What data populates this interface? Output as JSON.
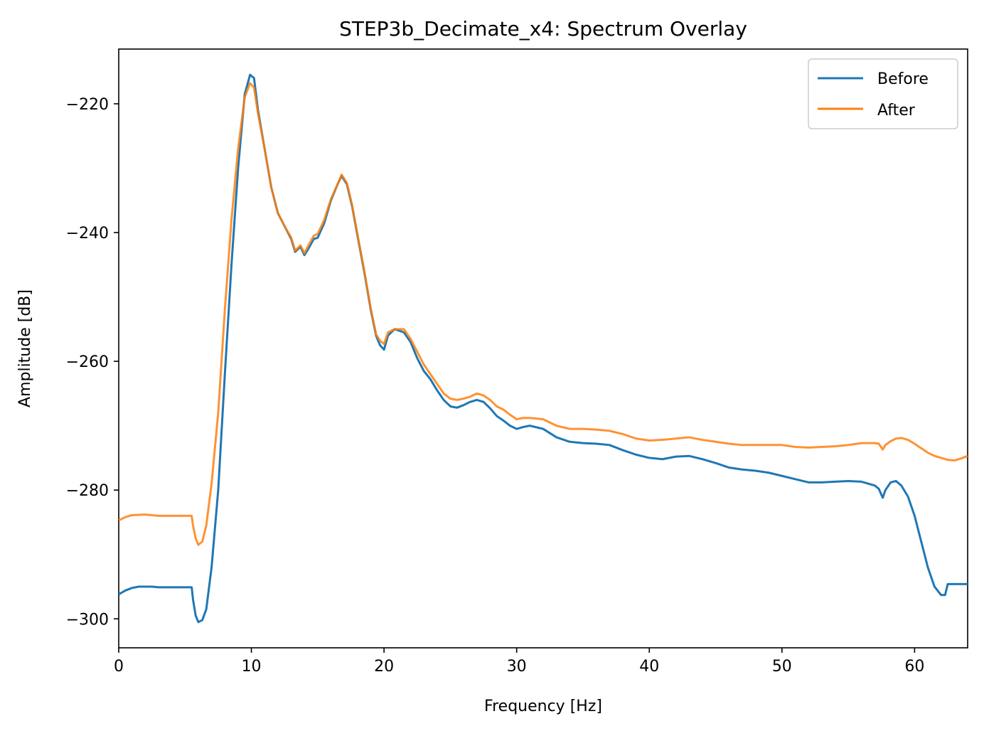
{
  "chart_data": {
    "type": "line",
    "title": "STEP3b_Decimate_x4: Spectrum Overlay",
    "xlabel": "Frequency [Hz]",
    "ylabel": "Amplitude [dB]",
    "xlim": [
      0,
      64
    ],
    "ylim": [
      -304.5,
      -211.5
    ],
    "xticks": [
      0,
      10,
      20,
      30,
      40,
      50,
      60
    ],
    "yticks": [
      -300,
      -280,
      -260,
      -240,
      -220
    ],
    "xtick_labels": [
      "0",
      "10",
      "20",
      "30",
      "40",
      "50",
      "60"
    ],
    "ytick_labels": [
      "−300",
      "−280",
      "−260",
      "−240",
      "−220"
    ],
    "grid": false,
    "legend_position": "top-right",
    "series": [
      {
        "name": "Before",
        "color": "#1f77b4",
        "points": [
          [
            0,
            -296.2
          ],
          [
            0.5,
            -295.6
          ],
          [
            1,
            -295.2
          ],
          [
            1.5,
            -295.0
          ],
          [
            2.5,
            -295.0
          ],
          [
            3,
            -295.1
          ],
          [
            4,
            -295.1
          ],
          [
            5,
            -295.1
          ],
          [
            5.5,
            -295.1
          ],
          [
            5.6,
            -297.0
          ],
          [
            5.8,
            -299.5
          ],
          [
            6.0,
            -300.5
          ],
          [
            6.3,
            -300.2
          ],
          [
            6.6,
            -298.5
          ],
          [
            7.0,
            -292.0
          ],
          [
            7.5,
            -280.0
          ],
          [
            8.0,
            -262.0
          ],
          [
            8.5,
            -245.0
          ],
          [
            9.0,
            -230.0
          ],
          [
            9.5,
            -218.5
          ],
          [
            9.9,
            -215.5
          ],
          [
            10.2,
            -216.0
          ],
          [
            10.5,
            -221.0
          ],
          [
            11.0,
            -227.0
          ],
          [
            11.5,
            -233.0
          ],
          [
            12.0,
            -237.0
          ],
          [
            12.5,
            -239.0
          ],
          [
            13.0,
            -241.0
          ],
          [
            13.3,
            -243.0
          ],
          [
            13.7,
            -242.2
          ],
          [
            14.0,
            -243.5
          ],
          [
            14.3,
            -242.5
          ],
          [
            14.7,
            -241.0
          ],
          [
            15.0,
            -240.8
          ],
          [
            15.5,
            -238.5
          ],
          [
            16.0,
            -235.0
          ],
          [
            16.5,
            -232.5
          ],
          [
            16.8,
            -231.2
          ],
          [
            17.2,
            -232.5
          ],
          [
            17.6,
            -236.0
          ],
          [
            18.0,
            -240.5
          ],
          [
            18.5,
            -246.0
          ],
          [
            19.0,
            -252.0
          ],
          [
            19.4,
            -256.0
          ],
          [
            19.7,
            -257.5
          ],
          [
            20.0,
            -258.2
          ],
          [
            20.3,
            -256.0
          ],
          [
            20.8,
            -255.0
          ],
          [
            21.5,
            -255.5
          ],
          [
            22.0,
            -257.0
          ],
          [
            22.5,
            -259.5
          ],
          [
            23.0,
            -261.5
          ],
          [
            23.5,
            -262.8
          ],
          [
            24.0,
            -264.5
          ],
          [
            24.5,
            -266.0
          ],
          [
            25.0,
            -267.0
          ],
          [
            25.5,
            -267.2
          ],
          [
            26.0,
            -266.8
          ],
          [
            26.5,
            -266.3
          ],
          [
            27.0,
            -266.0
          ],
          [
            27.5,
            -266.3
          ],
          [
            28.0,
            -267.3
          ],
          [
            28.5,
            -268.5
          ],
          [
            29.0,
            -269.2
          ],
          [
            29.5,
            -270.0
          ],
          [
            30.0,
            -270.5
          ],
          [
            30.5,
            -270.2
          ],
          [
            31.0,
            -270.0
          ],
          [
            32.0,
            -270.5
          ],
          [
            33.0,
            -271.8
          ],
          [
            34.0,
            -272.5
          ],
          [
            35.0,
            -272.7
          ],
          [
            36.0,
            -272.8
          ],
          [
            37.0,
            -273.0
          ],
          [
            38.0,
            -273.8
          ],
          [
            39.0,
            -274.5
          ],
          [
            40.0,
            -275.0
          ],
          [
            41.0,
            -275.2
          ],
          [
            42.0,
            -274.8
          ],
          [
            43.0,
            -274.7
          ],
          [
            44.0,
            -275.2
          ],
          [
            45.0,
            -275.8
          ],
          [
            46.0,
            -276.5
          ],
          [
            47.0,
            -276.8
          ],
          [
            48.0,
            -277.0
          ],
          [
            49.0,
            -277.3
          ],
          [
            50.0,
            -277.8
          ],
          [
            51.0,
            -278.3
          ],
          [
            52.0,
            -278.8
          ],
          [
            53.0,
            -278.8
          ],
          [
            54.0,
            -278.7
          ],
          [
            55.0,
            -278.6
          ],
          [
            56.0,
            -278.7
          ],
          [
            57.0,
            -279.3
          ],
          [
            57.3,
            -279.8
          ],
          [
            57.6,
            -281.2
          ],
          [
            57.8,
            -280.0
          ],
          [
            58.2,
            -278.8
          ],
          [
            58.6,
            -278.6
          ],
          [
            59.0,
            -279.3
          ],
          [
            59.5,
            -281.0
          ],
          [
            60.0,
            -284.0
          ],
          [
            60.5,
            -288.0
          ],
          [
            61.0,
            -292.0
          ],
          [
            61.5,
            -295.0
          ],
          [
            62.0,
            -296.3
          ],
          [
            62.3,
            -296.3
          ],
          [
            62.5,
            -294.6
          ],
          [
            63.0,
            -294.6
          ],
          [
            64.0,
            -294.6
          ]
        ]
      },
      {
        "name": "After",
        "color": "#ff7f0e",
        "points": [
          [
            0,
            -284.7
          ],
          [
            0.5,
            -284.2
          ],
          [
            1,
            -283.9
          ],
          [
            2.0,
            -283.8
          ],
          [
            3,
            -284.0
          ],
          [
            4,
            -284.0
          ],
          [
            5,
            -284.0
          ],
          [
            5.5,
            -284.0
          ],
          [
            5.6,
            -285.5
          ],
          [
            5.8,
            -287.5
          ],
          [
            6.0,
            -288.5
          ],
          [
            6.3,
            -288.0
          ],
          [
            6.6,
            -285.5
          ],
          [
            7.0,
            -279.0
          ],
          [
            7.5,
            -268.0
          ],
          [
            8.0,
            -252.0
          ],
          [
            8.5,
            -238.0
          ],
          [
            9.0,
            -227.0
          ],
          [
            9.5,
            -219.0
          ],
          [
            9.9,
            -216.8
          ],
          [
            10.2,
            -217.5
          ],
          [
            10.5,
            -221.5
          ],
          [
            11.0,
            -227.0
          ],
          [
            11.5,
            -233.0
          ],
          [
            12.0,
            -237.0
          ],
          [
            12.5,
            -239.0
          ],
          [
            13.0,
            -240.8
          ],
          [
            13.3,
            -242.8
          ],
          [
            13.7,
            -242.0
          ],
          [
            14.0,
            -243.2
          ],
          [
            14.3,
            -242.0
          ],
          [
            14.7,
            -240.5
          ],
          [
            15.0,
            -240.2
          ],
          [
            15.5,
            -238.0
          ],
          [
            16.0,
            -234.8
          ],
          [
            16.5,
            -232.5
          ],
          [
            16.8,
            -231.0
          ],
          [
            17.2,
            -232.3
          ],
          [
            17.6,
            -235.8
          ],
          [
            18.0,
            -240.3
          ],
          [
            18.5,
            -245.8
          ],
          [
            19.0,
            -251.8
          ],
          [
            19.4,
            -255.8
          ],
          [
            19.7,
            -256.8
          ],
          [
            20.0,
            -257.3
          ],
          [
            20.3,
            -255.5
          ],
          [
            20.8,
            -255.0
          ],
          [
            21.5,
            -255.0
          ],
          [
            22.0,
            -256.5
          ],
          [
            22.5,
            -258.5
          ],
          [
            23.0,
            -260.5
          ],
          [
            23.5,
            -262.0
          ],
          [
            24.0,
            -263.5
          ],
          [
            24.5,
            -265.0
          ],
          [
            25.0,
            -265.8
          ],
          [
            25.5,
            -266.0
          ],
          [
            26.0,
            -265.8
          ],
          [
            26.5,
            -265.5
          ],
          [
            27.0,
            -265.0
          ],
          [
            27.5,
            -265.3
          ],
          [
            28.0,
            -266.0
          ],
          [
            28.5,
            -267.0
          ],
          [
            29.0,
            -267.5
          ],
          [
            29.5,
            -268.3
          ],
          [
            30.0,
            -269.0
          ],
          [
            30.5,
            -268.8
          ],
          [
            31.0,
            -268.8
          ],
          [
            32.0,
            -269.0
          ],
          [
            33.0,
            -270.0
          ],
          [
            34.0,
            -270.5
          ],
          [
            35.0,
            -270.5
          ],
          [
            36.0,
            -270.6
          ],
          [
            37.0,
            -270.8
          ],
          [
            38.0,
            -271.3
          ],
          [
            39.0,
            -272.0
          ],
          [
            40.0,
            -272.3
          ],
          [
            41.0,
            -272.2
          ],
          [
            42.0,
            -272.0
          ],
          [
            43.0,
            -271.8
          ],
          [
            44.0,
            -272.2
          ],
          [
            45.0,
            -272.5
          ],
          [
            46.0,
            -272.8
          ],
          [
            47.0,
            -273.0
          ],
          [
            48.0,
            -273.0
          ],
          [
            49.0,
            -273.0
          ],
          [
            50.0,
            -273.0
          ],
          [
            51.0,
            -273.3
          ],
          [
            52.0,
            -273.4
          ],
          [
            53.0,
            -273.3
          ],
          [
            54.0,
            -273.2
          ],
          [
            55.0,
            -273.0
          ],
          [
            56.0,
            -272.7
          ],
          [
            57.0,
            -272.7
          ],
          [
            57.3,
            -272.8
          ],
          [
            57.6,
            -273.7
          ],
          [
            57.8,
            -273.0
          ],
          [
            58.2,
            -272.4
          ],
          [
            58.6,
            -272.0
          ],
          [
            59.0,
            -271.9
          ],
          [
            59.5,
            -272.2
          ],
          [
            60.0,
            -272.8
          ],
          [
            60.5,
            -273.5
          ],
          [
            61.0,
            -274.2
          ],
          [
            61.5,
            -274.7
          ],
          [
            62.0,
            -275.0
          ],
          [
            62.5,
            -275.3
          ],
          [
            63.0,
            -275.4
          ],
          [
            63.5,
            -275.1
          ],
          [
            64.0,
            -274.7
          ]
        ]
      }
    ]
  }
}
